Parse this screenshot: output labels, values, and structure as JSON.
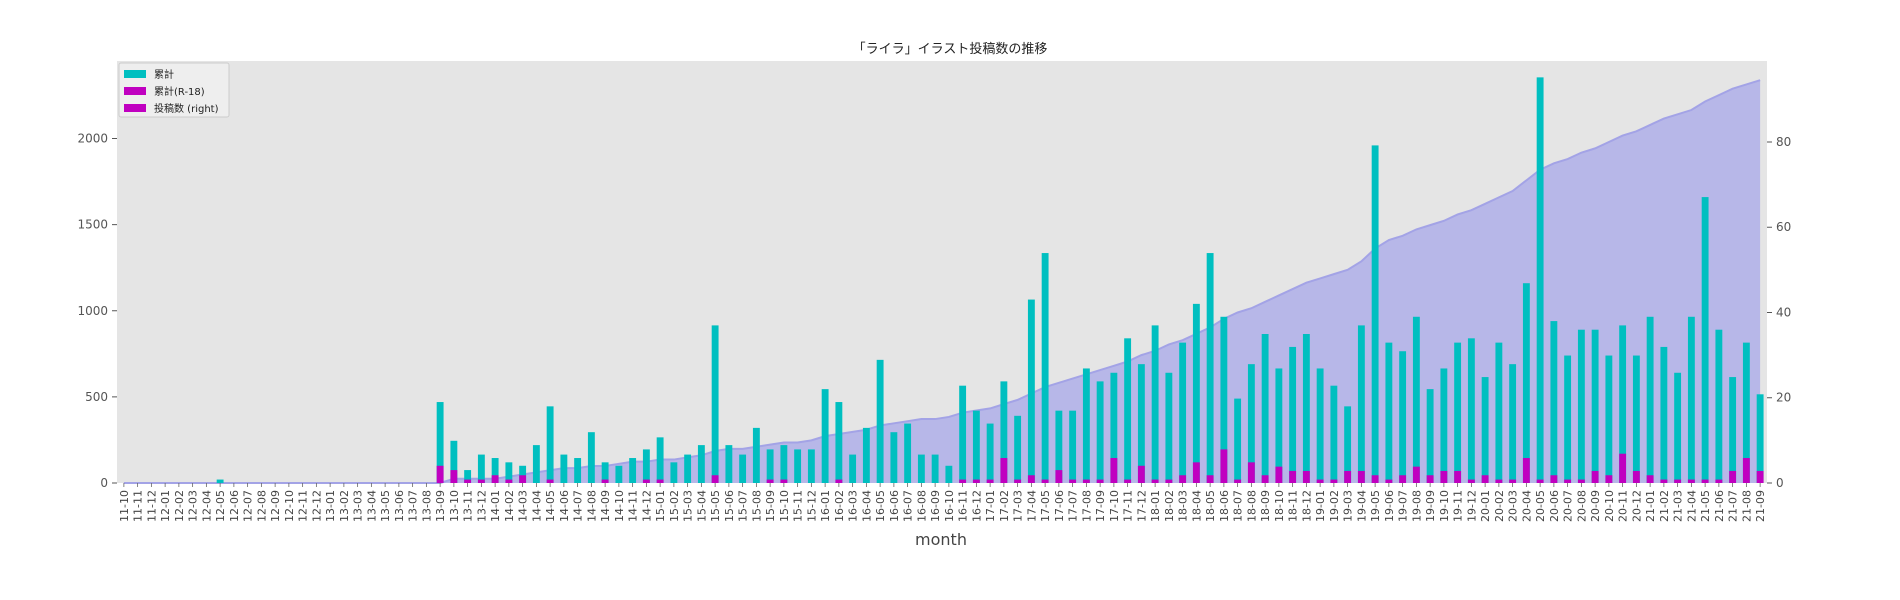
{
  "chart_data": {
    "type": "bar",
    "title": "「ライラ」イラスト投稿数の推移",
    "xlabel": "month",
    "ylabel": "",
    "ylim": [
      0,
      2450
    ],
    "y2lim": [
      0,
      99
    ],
    "yticks": [
      0,
      500,
      1000,
      1500,
      2000
    ],
    "y2ticks": [
      0,
      20,
      40,
      60,
      80
    ],
    "grid": false,
    "legend_position": "top-left",
    "colors": {
      "cumulative": "#00bfc0",
      "cumulative_r18": "#c000c0",
      "posts_right": "#c000c0",
      "area_fill": "#b4b4e8",
      "area_line": "#a3a3e6",
      "plot_bg": "#e5e5e5"
    },
    "categories": [
      "11-10",
      "11-11",
      "11-12",
      "12-01",
      "12-02",
      "12-03",
      "12-04",
      "12-05",
      "12-06",
      "12-07",
      "12-08",
      "12-09",
      "12-10",
      "12-11",
      "12-12",
      "13-01",
      "13-02",
      "13-03",
      "13-04",
      "13-05",
      "13-06",
      "13-07",
      "13-08",
      "13-09",
      "13-10",
      "13-11",
      "13-12",
      "14-01",
      "14-02",
      "14-03",
      "14-04",
      "14-05",
      "14-06",
      "14-07",
      "14-08",
      "14-09",
      "14-10",
      "14-11",
      "14-12",
      "15-01",
      "15-02",
      "15-03",
      "15-04",
      "15-05",
      "15-06",
      "15-07",
      "15-08",
      "15-09",
      "15-10",
      "15-11",
      "15-12",
      "16-01",
      "16-02",
      "16-03",
      "16-04",
      "16-05",
      "16-06",
      "16-07",
      "16-08",
      "16-09",
      "16-10",
      "16-11",
      "16-12",
      "17-01",
      "17-02",
      "17-03",
      "17-04",
      "17-05",
      "17-06",
      "17-07",
      "17-08",
      "17-09",
      "17-10",
      "17-11",
      "17-12",
      "18-01",
      "18-02",
      "18-03",
      "18-04",
      "18-05",
      "18-06",
      "18-07",
      "18-08",
      "18-09",
      "18-10",
      "18-11",
      "18-12",
      "19-01",
      "19-02",
      "19-03",
      "19-04",
      "19-05",
      "19-06",
      "19-07",
      "19-08",
      "19-09",
      "19-10",
      "19-11",
      "19-12",
      "20-01",
      "20-02",
      "20-03",
      "20-04",
      "20-05",
      "20-06",
      "20-07",
      "20-08",
      "20-09",
      "20-10",
      "20-11",
      "20-12",
      "21-01",
      "21-02",
      "21-03",
      "21-04",
      "21-05",
      "21-06",
      "21-07",
      "21-08",
      "21-09"
    ],
    "series": [
      {
        "name": "累計",
        "axis": "left",
        "kind": "bar",
        "values": [
          0,
          0,
          0,
          0,
          0,
          0,
          0,
          20,
          0,
          0,
          0,
          0,
          0,
          0,
          0,
          0,
          0,
          0,
          0,
          0,
          0,
          0,
          0,
          470,
          245,
          75,
          165,
          145,
          120,
          100,
          220,
          445,
          165,
          145,
          295,
          120,
          100,
          145,
          195,
          265,
          120,
          165,
          220,
          915,
          220,
          165,
          320,
          195,
          220,
          195,
          195,
          545,
          470,
          165,
          320,
          715,
          295,
          345,
          165,
          165,
          100,
          565,
          420,
          345,
          590,
          390,
          1065,
          1335,
          420,
          420,
          665,
          590,
          640,
          840,
          690,
          915,
          640,
          815,
          1040,
          1335,
          965,
          490,
          690,
          865,
          665,
          790,
          865,
          665,
          565,
          445,
          915,
          1960,
          815,
          765,
          965,
          545,
          665,
          815,
          840,
          615,
          815,
          690,
          1160,
          2355,
          940,
          740,
          890,
          890,
          740,
          915,
          740,
          965,
          790,
          640,
          965,
          1660,
          890,
          615,
          815,
          515
        ]
      },
      {
        "name": "累計(R-18)",
        "axis": "left",
        "kind": "bar",
        "values": [
          0,
          0,
          0,
          0,
          0,
          0,
          0,
          0,
          0,
          0,
          0,
          0,
          0,
          0,
          0,
          0,
          0,
          0,
          0,
          0,
          0,
          0,
          0,
          100,
          75,
          20,
          20,
          45,
          20,
          45,
          0,
          20,
          0,
          0,
          0,
          20,
          0,
          0,
          20,
          20,
          0,
          0,
          0,
          45,
          0,
          0,
          0,
          20,
          20,
          0,
          0,
          0,
          20,
          0,
          0,
          0,
          0,
          0,
          0,
          0,
          0,
          20,
          20,
          20,
          145,
          20,
          45,
          20,
          75,
          20,
          20,
          20,
          145,
          20,
          100,
          20,
          20,
          45,
          120,
          45,
          195,
          20,
          120,
          45,
          95,
          70,
          70,
          20,
          20,
          70,
          70,
          45,
          20,
          45,
          95,
          45,
          70,
          70,
          20,
          45,
          20,
          20,
          145,
          20,
          45,
          20,
          20,
          70,
          45,
          170,
          70,
          45,
          20,
          20,
          20,
          20,
          20,
          70,
          145,
          70
        ]
      },
      {
        "name": "投稿数 (right)",
        "axis": "right",
        "kind": "area",
        "values": [
          0,
          0,
          0,
          0,
          0,
          0,
          0,
          0,
          0,
          0,
          0,
          0,
          0,
          0,
          0,
          0,
          0,
          0,
          0,
          0,
          0,
          0,
          0,
          0,
          1,
          1,
          1,
          1,
          1.5,
          2,
          2.5,
          3,
          3.5,
          3.5,
          4,
          4,
          4.5,
          5,
          5,
          5.5,
          5.5,
          6,
          6.5,
          7.5,
          8,
          8,
          8.5,
          9,
          9.5,
          9.5,
          10,
          11,
          11.5,
          12,
          12.5,
          13.5,
          14,
          14.5,
          15,
          15,
          15.5,
          16.5,
          17,
          17.5,
          18.5,
          19.5,
          21,
          22.5,
          23.5,
          24.5,
          25.5,
          26.5,
          27.5,
          28.5,
          30,
          31,
          32.5,
          33.5,
          35,
          36.5,
          38.5,
          40,
          41,
          42.5,
          44,
          45.5,
          47,
          48,
          49,
          50,
          52,
          55,
          57,
          58,
          59.5,
          60.5,
          61.5,
          63,
          64,
          65.5,
          67,
          68.5,
          71,
          73.5,
          75,
          76,
          77.5,
          78.5,
          80,
          81.5,
          82.5,
          84,
          85.5,
          86.5,
          87.5,
          89.5,
          91,
          92.5,
          93.5,
          94.5
        ]
      }
    ]
  }
}
